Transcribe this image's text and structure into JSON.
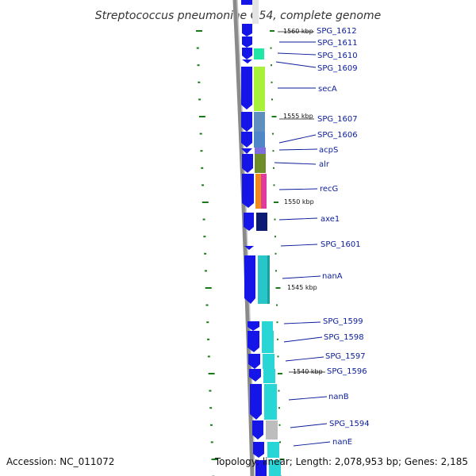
{
  "map": {
    "title": "Streptococcus pneumoniae G54, complete genome",
    "accession": "Accession: NC_011072",
    "summary": "Topology: linear; Length: 2,078,953 bp; Genes: 2,185",
    "scale_labels": [
      "1560 kbp",
      "1555 kbp",
      "1550 kbp",
      "1545 kbp",
      "1540 kbp"
    ],
    "genes": [
      {
        "name": "SPG_1612",
        "cog_color": "#ffffff"
      },
      {
        "name": "SPG_1611",
        "cog_color": "#ffffff"
      },
      {
        "name": "SPG_1610",
        "cog_color": "#22e6a5"
      },
      {
        "name": "SPG_1609",
        "cog_color": "#ffffff"
      },
      {
        "name": "secA",
        "cog_color": "#a8f03a"
      },
      {
        "name": "SPG_1607",
        "cog_color": "#5e8fbe"
      },
      {
        "name": "SPG_1606",
        "cog_color": "#4f86c8"
      },
      {
        "name": "acpS",
        "cog_color": "#7f6de0"
      },
      {
        "name": "alr",
        "cog_color": "#6f8e2a"
      },
      {
        "name": "recG",
        "cog_color": "#f08a1c"
      },
      {
        "name": "axe1",
        "cog_color": "#0b1a72"
      },
      {
        "name": "SPG_1601",
        "cog_color": "#ffffff"
      },
      {
        "name": "nanA",
        "cog_color": "#27c6c8"
      },
      {
        "name": "SPG_1599",
        "cog_color": "#28d6d6"
      },
      {
        "name": "SPG_1598",
        "cog_color": "#28d6d6"
      },
      {
        "name": "SPG_1597",
        "cog_color": "#28d6d6"
      },
      {
        "name": "SPG_1596",
        "cog_color": "#28d6d6"
      },
      {
        "name": "nanB",
        "cog_color": "#28d6d6"
      },
      {
        "name": "SPG_1594",
        "cog_color": "#bdbdbd"
      },
      {
        "name": "nanE",
        "cog_color": "#28d6d6"
      }
    ],
    "colors": {
      "gene_arrow": "#1515e8",
      "gene_label": "#0b1c9a",
      "tick": "#1a7a1a",
      "backbone": "#9a9a9a",
      "recG_secondary": "#e03aa0"
    }
  }
}
